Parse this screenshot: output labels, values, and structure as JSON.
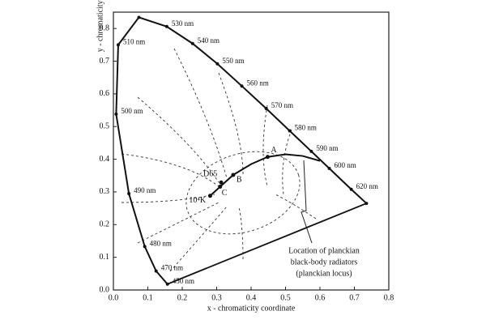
{
  "chart_data": {
    "type": "line",
    "x_label": "x - chromaticity coordinate",
    "y_label": "y - chromaticity coordinate",
    "xlim": [
      0,
      0.8
    ],
    "ylim": [
      0,
      0.85
    ],
    "xticks": [
      {
        "value": 0,
        "label": "0.0"
      },
      0.1,
      0.2,
      0.3,
      0.4,
      0.5,
      0.6,
      0.7,
      0.8
    ],
    "yticks": [
      {
        "value": 0,
        "label": "0.0"
      },
      0.1,
      0.2,
      0.3,
      0.4,
      0.5,
      0.6,
      0.7,
      0.8
    ],
    "series": [
      {
        "color": "#111111",
        "x": [
          0.157,
          0.124,
          0.091,
          0.045,
          0.008,
          0.014,
          0.074,
          0.155,
          0.23,
          0.302,
          0.373,
          0.444,
          0.512,
          0.575,
          0.627,
          0.691,
          0.735
        ],
        "values": [
          0.018,
          0.058,
          0.133,
          0.295,
          0.538,
          0.75,
          0.834,
          0.806,
          0.754,
          0.692,
          0.624,
          0.555,
          0.487,
          0.424,
          0.372,
          0.308,
          0.265
        ],
        "point_labels": [
          "450 nm",
          "470 nm",
          "480 nm",
          "490 nm",
          "500 nm",
          "510 nm",
          null,
          "530 nm",
          "540 nm",
          "550 nm",
          "560 nm",
          "570 nm",
          "580 nm",
          "590 nm",
          "600 nm",
          "620 nm",
          null
        ]
      },
      {
        "color": "#111111",
        "x": [
          0.281,
          0.31,
          0.348,
          0.4,
          0.448,
          0.5,
          0.55,
          0.6
        ],
        "values": [
          0.288,
          0.316,
          0.352,
          0.385,
          0.407,
          0.415,
          0.41,
          0.395
        ]
      }
    ],
    "points": [
      {
        "label": "A",
        "x": 0.448,
        "y": 0.407
      },
      {
        "label": "B",
        "x": 0.348,
        "y": 0.352
      },
      {
        "label": "C",
        "x": 0.31,
        "y": 0.316
      },
      {
        "label": "D65",
        "x": 0.313,
        "y": 0.329
      },
      {
        "label": "10⁴K",
        "x": 0.281,
        "y": 0.288
      }
    ],
    "annotation": [
      "Location of planckian",
      "black-body radiators",
      "(planckian locus)"
    ]
  }
}
